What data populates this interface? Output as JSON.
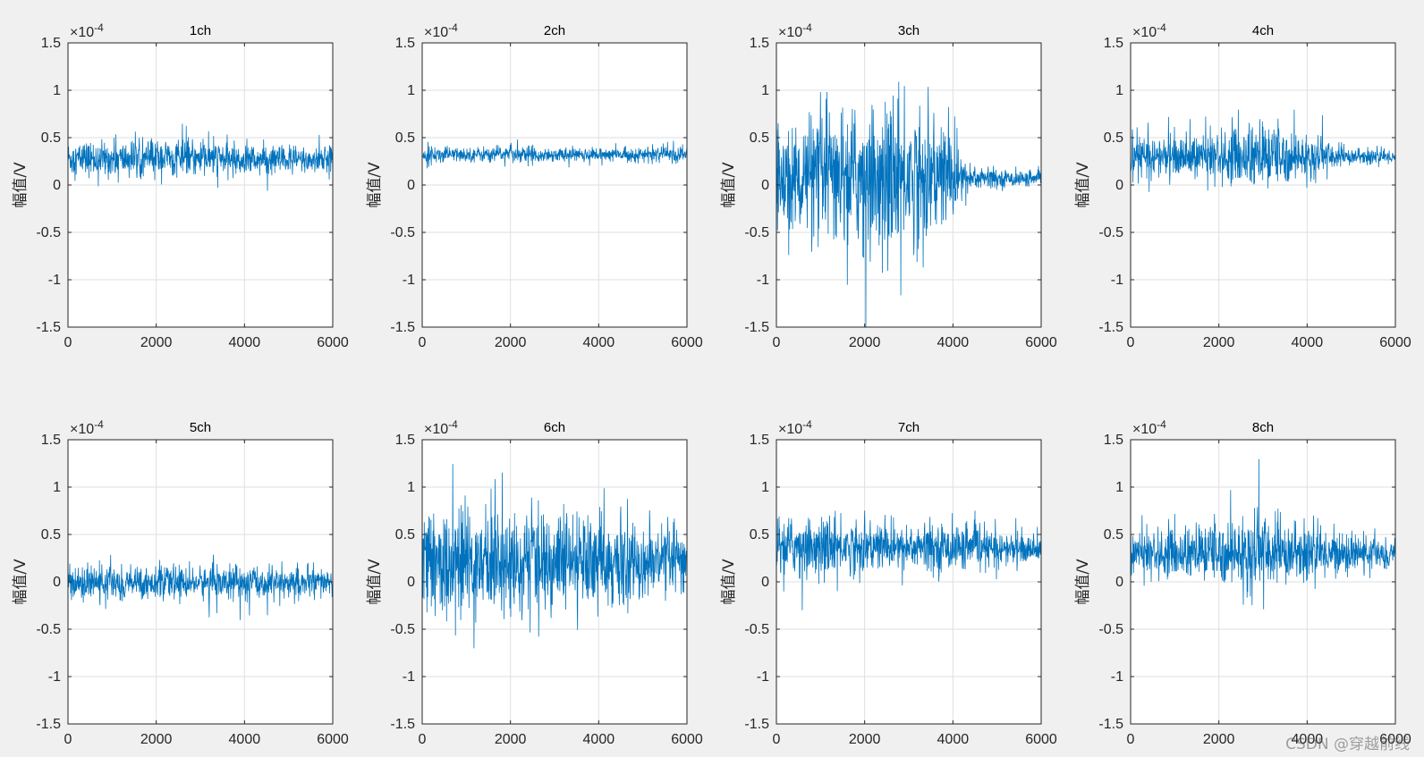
{
  "chart_data": [
    {
      "type": "line",
      "title": "1ch",
      "ylabel": "幅值/V",
      "xlim": [
        0,
        6000
      ],
      "ylim": [
        -1.5,
        1.5
      ],
      "y_exponent": "-4",
      "x_ticks": [
        0,
        2000,
        4000,
        6000
      ],
      "y_ticks": [
        -1.5,
        -1,
        -0.5,
        0,
        0.5,
        1,
        1.5
      ],
      "grid": true,
      "color": "#0072bd",
      "series": [
        {
          "x": [
            0,
            1000,
            2000,
            3000,
            4000,
            5000,
            6000
          ],
          "y": [
            0.28,
            0.27,
            0.29,
            0.28,
            0.27,
            0.26,
            0.27
          ],
          "noise": [
            0.1,
            0.1,
            0.11,
            0.1,
            0.09,
            0.09,
            0.08
          ]
        }
      ]
    },
    {
      "type": "line",
      "title": "2ch",
      "ylabel": "幅值/V",
      "xlim": [
        0,
        6000
      ],
      "ylim": [
        -1.5,
        1.5
      ],
      "y_exponent": "-4",
      "x_ticks": [
        0,
        2000,
        4000,
        6000
      ],
      "y_ticks": [
        -1.5,
        -1,
        -0.5,
        0,
        0.5,
        1,
        1.5
      ],
      "grid": true,
      "color": "#0072bd",
      "series": [
        {
          "x": [
            0,
            1000,
            2000,
            3000,
            4000,
            5000,
            6000
          ],
          "y": [
            0.32,
            0.32,
            0.33,
            0.32,
            0.32,
            0.32,
            0.32
          ],
          "noise": [
            0.05,
            0.04,
            0.05,
            0.04,
            0.04,
            0.04,
            0.05
          ]
        }
      ]
    },
    {
      "type": "line",
      "title": "3ch",
      "ylabel": "幅值/V",
      "xlim": [
        0,
        6000
      ],
      "ylim": [
        -1.5,
        1.5
      ],
      "y_exponent": "-4",
      "x_ticks": [
        0,
        2000,
        4000,
        6000
      ],
      "y_ticks": [
        -1.5,
        -1,
        -0.5,
        0,
        0.5,
        1,
        1.5
      ],
      "grid": true,
      "color": "#0072bd",
      "series": [
        {
          "x": [
            0,
            1000,
            2000,
            3000,
            4000,
            4300,
            5000,
            6000
          ],
          "y": [
            0.05,
            0.08,
            0.1,
            0.1,
            0.1,
            0.08,
            0.07,
            0.06
          ],
          "noise": [
            0.3,
            0.35,
            0.4,
            0.42,
            0.3,
            0.1,
            0.05,
            0.04
          ]
        }
      ]
    },
    {
      "type": "line",
      "title": "4ch",
      "ylabel": "幅值/V",
      "xlim": [
        0,
        6000
      ],
      "ylim": [
        -1.5,
        1.5
      ],
      "y_exponent": "-4",
      "x_ticks": [
        0,
        2000,
        4000,
        6000
      ],
      "y_ticks": [
        -1.5,
        -1,
        -0.5,
        0,
        0.5,
        1,
        1.5
      ],
      "grid": true,
      "color": "#0072bd",
      "series": [
        {
          "x": [
            0,
            1000,
            2000,
            3000,
            4000,
            5000,
            6000
          ],
          "y": [
            0.3,
            0.3,
            0.3,
            0.3,
            0.3,
            0.3,
            0.3
          ],
          "noise": [
            0.12,
            0.11,
            0.14,
            0.2,
            0.12,
            0.05,
            0.04
          ]
        }
      ]
    },
    {
      "type": "line",
      "title": "5ch",
      "ylabel": "幅值/V",
      "xlim": [
        0,
        6000
      ],
      "ylim": [
        -1.5,
        1.5
      ],
      "y_exponent": "-4",
      "x_ticks": [
        0,
        2000,
        4000,
        6000
      ],
      "y_ticks": [
        -1.5,
        -1,
        -0.5,
        0,
        0.5,
        1,
        1.5
      ],
      "grid": true,
      "color": "#0072bd",
      "series": [
        {
          "x": [
            0,
            1000,
            2000,
            3000,
            4000,
            5000,
            6000
          ],
          "y": [
            -0.01,
            -0.01,
            -0.01,
            -0.01,
            -0.01,
            -0.01,
            -0.01
          ],
          "noise": [
            0.08,
            0.1,
            0.09,
            0.09,
            0.1,
            0.09,
            0.08
          ]
        }
      ]
    },
    {
      "type": "line",
      "title": "6ch",
      "ylabel": "幅值/V",
      "xlim": [
        0,
        6000
      ],
      "ylim": [
        -1.5,
        1.5
      ],
      "y_exponent": "-4",
      "x_ticks": [
        0,
        2000,
        4000,
        6000
      ],
      "y_ticks": [
        -1.5,
        -1,
        -0.5,
        0,
        0.5,
        1,
        1.5
      ],
      "grid": true,
      "color": "#0072bd",
      "series": [
        {
          "x": [
            0,
            1000,
            2000,
            3000,
            4000,
            5000,
            6000
          ],
          "y": [
            0.2,
            0.2,
            0.2,
            0.2,
            0.2,
            0.2,
            0.2
          ],
          "noise": [
            0.28,
            0.32,
            0.3,
            0.3,
            0.26,
            0.2,
            0.18
          ]
        }
      ]
    },
    {
      "type": "line",
      "title": "7ch",
      "ylabel": "幅值/V",
      "xlim": [
        0,
        6000
      ],
      "ylim": [
        -1.5,
        1.5
      ],
      "y_exponent": "-4",
      "x_ticks": [
        0,
        2000,
        4000,
        6000
      ],
      "y_ticks": [
        -1.5,
        -1,
        -0.5,
        0,
        0.5,
        1,
        1.5
      ],
      "grid": true,
      "color": "#0072bd",
      "series": [
        {
          "x": [
            0,
            1000,
            2000,
            3000,
            4000,
            5000,
            6000
          ],
          "y": [
            0.38,
            0.38,
            0.37,
            0.37,
            0.36,
            0.35,
            0.34
          ],
          "noise": [
            0.16,
            0.16,
            0.15,
            0.14,
            0.13,
            0.1,
            0.07
          ]
        }
      ]
    },
    {
      "type": "line",
      "title": "8ch",
      "ylabel": "幅值/V",
      "xlim": [
        0,
        6000
      ],
      "ylim": [
        -1.5,
        1.5
      ],
      "y_exponent": "-4",
      "x_ticks": [
        0,
        2000,
        4000,
        6000
      ],
      "y_ticks": [
        -1.5,
        -1,
        -0.5,
        0,
        0.5,
        1,
        1.5
      ],
      "grid": true,
      "color": "#0072bd",
      "series": [
        {
          "x": [
            0,
            1000,
            2000,
            3000,
            4000,
            5000,
            6000
          ],
          "y": [
            0.3,
            0.3,
            0.31,
            0.31,
            0.31,
            0.3,
            0.3
          ],
          "noise": [
            0.12,
            0.14,
            0.18,
            0.22,
            0.16,
            0.1,
            0.08
          ]
        }
      ]
    }
  ],
  "watermark": "CSDN @穿越前线",
  "colors": {
    "background": "#f0f0f0",
    "axes_bg": "#ffffff",
    "line": "#0072bd",
    "grid": "#dfdfdf",
    "axis": "#262626"
  }
}
